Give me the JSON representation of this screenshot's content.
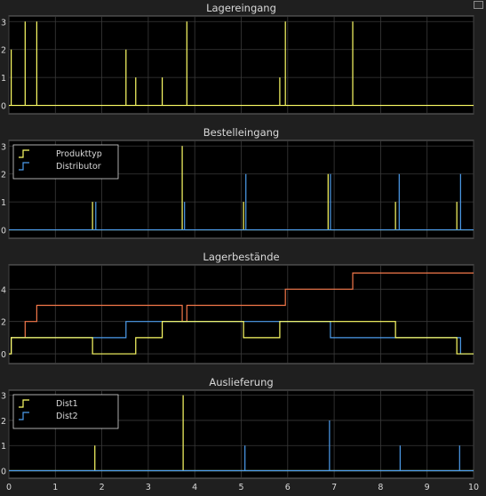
{
  "colors": {
    "background": "#1f1f1f",
    "axes_bg": "#000000",
    "grid": "#3a3a3a",
    "text": "#d9d9d9",
    "yellow": "#ffff66",
    "blue": "#4d9ded",
    "orange": "#f5784a"
  },
  "icons": {
    "corner": "undock-icon"
  },
  "chart_data": [
    {
      "type": "line",
      "title": "Lagereingang",
      "xlim": [
        0,
        10
      ],
      "ylim": [
        -0.3,
        3.2
      ],
      "yticks": [
        0,
        1,
        2,
        3
      ],
      "xticks_shown": false,
      "grid": true,
      "legend": null,
      "series": [
        {
          "color": "yellow",
          "style": "impulse",
          "points": [
            [
              0.05,
              2
            ],
            [
              0.35,
              3
            ],
            [
              0.6,
              3
            ],
            [
              2.52,
              2
            ],
            [
              2.73,
              1
            ],
            [
              3.3,
              1
            ],
            [
              3.83,
              3
            ],
            [
              5.83,
              1
            ],
            [
              5.95,
              3
            ],
            [
              7.4,
              3
            ]
          ]
        }
      ]
    },
    {
      "type": "line",
      "title": "Bestelleingang",
      "xlim": [
        0,
        10
      ],
      "ylim": [
        -0.3,
        3.2
      ],
      "yticks": [
        0,
        1,
        2,
        3
      ],
      "xticks_shown": false,
      "grid": true,
      "legend": "top-left",
      "series": [
        {
          "name": "Produkttyp",
          "color": "yellow",
          "style": "impulse",
          "points": [
            [
              1.8,
              1
            ],
            [
              3.73,
              3
            ],
            [
              5.05,
              1
            ],
            [
              6.87,
              2
            ],
            [
              8.32,
              1
            ],
            [
              9.64,
              1
            ]
          ]
        },
        {
          "name": "Distributor",
          "color": "blue",
          "style": "impulse",
          "points": [
            [
              1.87,
              1
            ],
            [
              3.78,
              1
            ],
            [
              5.1,
              2
            ],
            [
              6.92,
              2
            ],
            [
              8.4,
              2
            ],
            [
              9.72,
              2
            ]
          ]
        }
      ]
    },
    {
      "type": "line",
      "title": "Lagerbestände",
      "xlim": [
        0,
        10
      ],
      "ylim": [
        -0.6,
        5.5
      ],
      "yticks": [
        0,
        2,
        4
      ],
      "xticks_shown": false,
      "grid": true,
      "legend": null,
      "series": [
        {
          "color": "orange",
          "style": "step",
          "points": [
            [
              0,
              0
            ],
            [
              0.05,
              1
            ],
            [
              0.35,
              2
            ],
            [
              0.6,
              3
            ],
            [
              3.73,
              2
            ],
            [
              3.83,
              3
            ],
            [
              5.95,
              4
            ],
            [
              7.4,
              5
            ],
            [
              10,
              5
            ]
          ]
        },
        {
          "color": "blue",
          "style": "step",
          "points": [
            [
              0,
              0
            ],
            [
              0.05,
              1
            ],
            [
              2.52,
              2
            ],
            [
              5.1,
              2
            ],
            [
              6.92,
              1
            ],
            [
              9.72,
              0
            ],
            [
              10,
              0
            ]
          ]
        },
        {
          "color": "yellow",
          "style": "step",
          "points": [
            [
              0,
              0
            ],
            [
              0.05,
              1
            ],
            [
              1.8,
              0
            ],
            [
              2.73,
              1
            ],
            [
              3.3,
              2
            ],
            [
              5.05,
              1
            ],
            [
              5.83,
              2
            ],
            [
              8.32,
              1
            ],
            [
              9.64,
              0
            ],
            [
              10,
              0
            ]
          ]
        }
      ]
    },
    {
      "type": "line",
      "title": "Auslieferung",
      "xlim": [
        0,
        10
      ],
      "ylim": [
        -0.3,
        3.2
      ],
      "yticks": [
        0,
        1,
        2,
        3
      ],
      "xticks": [
        0,
        1,
        2,
        3,
        4,
        5,
        6,
        7,
        8,
        9,
        10
      ],
      "xticks_shown": true,
      "grid": true,
      "legend": "top-left",
      "series": [
        {
          "name": "Dist1",
          "color": "yellow",
          "style": "impulse",
          "points": [
            [
              1.85,
              1
            ],
            [
              3.75,
              3
            ]
          ]
        },
        {
          "name": "Dist2",
          "color": "blue",
          "style": "impulse",
          "points": [
            [
              5.08,
              1
            ],
            [
              6.9,
              2
            ],
            [
              8.42,
              1
            ],
            [
              9.7,
              1
            ]
          ]
        }
      ]
    }
  ]
}
